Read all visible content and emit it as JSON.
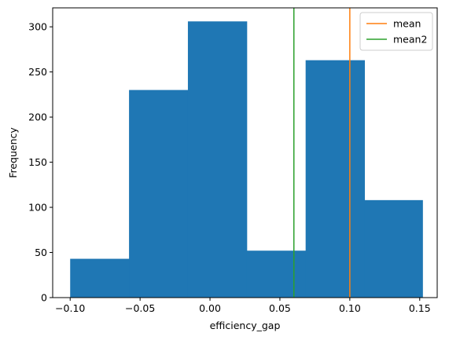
{
  "chart_data": {
    "type": "bar",
    "subtype": "histogram",
    "xlabel": "efficiency_gap",
    "ylabel": "Frequency",
    "xlim": [
      -0.1125,
      0.1625
    ],
    "ylim": [
      0,
      321
    ],
    "xticks": [
      -0.1,
      -0.05,
      0.0,
      0.05,
      0.1,
      0.15
    ],
    "xtick_labels": [
      "−0.10",
      "−0.05",
      "0.00",
      "0.05",
      "0.10",
      "0.15"
    ],
    "yticks": [
      0,
      50,
      100,
      150,
      200,
      250,
      300
    ],
    "ytick_labels": [
      "0",
      "50",
      "100",
      "150",
      "200",
      "250",
      "300"
    ],
    "bins": [
      {
        "x0": -0.1,
        "x1": -0.0579,
        "count": 43
      },
      {
        "x0": -0.0579,
        "x1": -0.0158,
        "count": 230
      },
      {
        "x0": -0.0158,
        "x1": 0.0263,
        "count": 306
      },
      {
        "x0": 0.0263,
        "x1": 0.0684,
        "count": 52
      },
      {
        "x0": 0.0684,
        "x1": 0.1105,
        "count": 263
      },
      {
        "x0": 0.1105,
        "x1": 0.152,
        "count": 108
      }
    ],
    "bar_color": "#1f77b4",
    "vlines": [
      {
        "name": "mean",
        "x": 0.1,
        "color": "#ff7f0e"
      },
      {
        "name": "mean2",
        "x": 0.06,
        "color": "#2ca02c"
      }
    ],
    "legend": {
      "placement": "top-right",
      "entries": [
        "mean",
        "mean2"
      ]
    },
    "grid": false
  }
}
